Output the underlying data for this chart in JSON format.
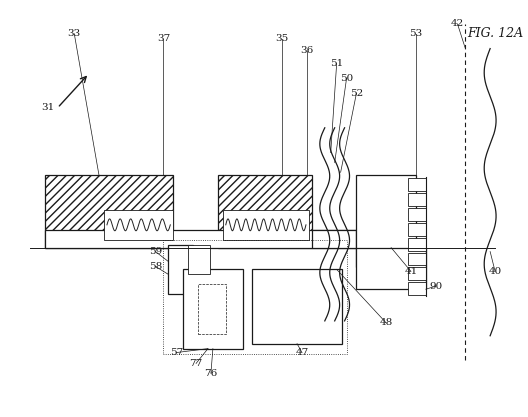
{
  "bg_color": "#ffffff",
  "line_color": "#1a1a1a",
  "fig_label": "FIG. 12A"
}
